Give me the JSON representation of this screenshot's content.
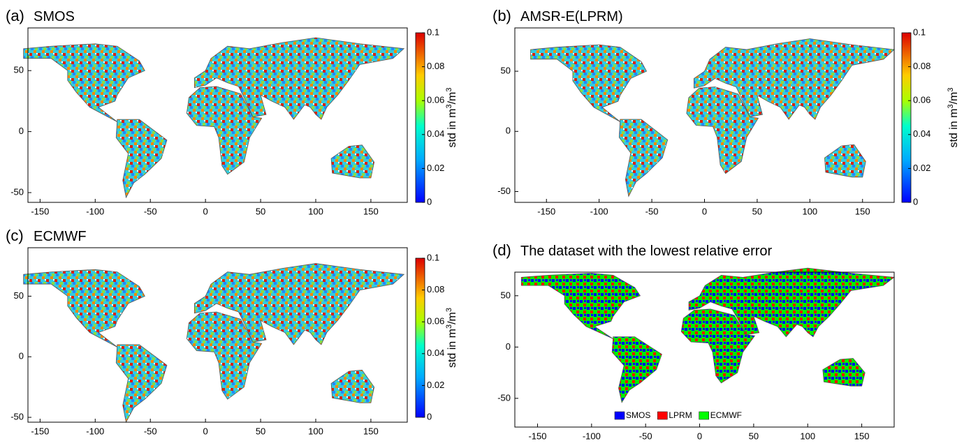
{
  "panels": [
    {
      "label": "(a)",
      "title": "SMOS",
      "xlim": [
        -161,
        183
      ],
      "ylim": [
        -58,
        85
      ],
      "xticks": [
        -150,
        -100,
        -50,
        0,
        50,
        100,
        150
      ],
      "yticks": [
        -50,
        0,
        50
      ],
      "colorbar": {
        "clim": [
          0,
          0.1
        ],
        "ticks": [
          0,
          0.02,
          0.04,
          0.06,
          0.08,
          0.1
        ],
        "label": [
          "std in m",
          "3",
          "/m",
          "3"
        ]
      }
    },
    {
      "label": "(b)",
      "title": "AMSR-E(LPRM)",
      "xlim": [
        -180,
        180
      ],
      "ylim": [
        -59,
        86
      ],
      "xticks": [
        -150,
        -100,
        -50,
        0,
        50,
        100,
        150
      ],
      "yticks": [
        -50,
        0,
        50
      ],
      "colorbar": {
        "clim": [
          0,
          0.1
        ],
        "ticks": [
          0,
          0.02,
          0.04,
          0.06,
          0.08,
          0.1
        ],
        "label": [
          "std in m",
          "3",
          "/m",
          "3"
        ]
      }
    },
    {
      "label": "(c)",
      "title": "ECMWF",
      "xlim": [
        -161,
        183
      ],
      "ylim": [
        -54,
        90
      ],
      "xticks": [
        -150,
        -100,
        -50,
        0,
        50,
        100,
        150
      ],
      "yticks": [
        -50,
        0,
        50
      ],
      "colorbar": {
        "clim": [
          0,
          0.1
        ],
        "ticks": [
          0,
          0.02,
          0.04,
          0.06,
          0.08,
          0.1
        ],
        "label": [
          "std in m",
          "3",
          "/m",
          "3"
        ]
      }
    },
    {
      "label": "(d)",
      "title": "The dataset with the lowest relative error",
      "xlim": [
        -171,
        180
      ],
      "ylim": [
        -78,
        73
      ],
      "xticks": [
        -150,
        -100,
        -50,
        0,
        50,
        100,
        150
      ],
      "yticks": [
        -50,
        0,
        50
      ],
      "legend": [
        {
          "name": "SMOS",
          "color": "#0000ff"
        },
        {
          "name": "LPRM",
          "color": "#ff0000"
        },
        {
          "name": "ECMWF",
          "color": "#00ff00"
        }
      ]
    }
  ]
}
